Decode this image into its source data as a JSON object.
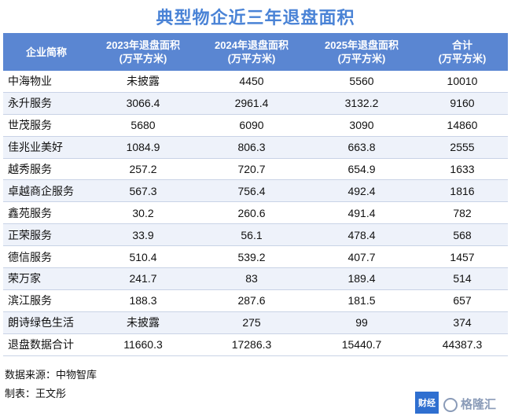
{
  "title": "典型物企近三年退盘面积",
  "headers": [
    {
      "line1": "企业简称",
      "line2": ""
    },
    {
      "line1": "2023年退盘面积",
      "line2": "(万平方米)"
    },
    {
      "line1": "2024年退盘面积",
      "line2": "(万平方米)"
    },
    {
      "line1": "2025年退盘面积",
      "line2": "(万平方米)"
    },
    {
      "line1": "合计",
      "line2": "(万平方米)"
    }
  ],
  "rows": [
    [
      "中海物业",
      "未披露",
      "4450",
      "5560",
      "10010"
    ],
    [
      "永升服务",
      "3066.4",
      "2961.4",
      "3132.2",
      "9160"
    ],
    [
      "世茂服务",
      "5680",
      "6090",
      "3090",
      "14860"
    ],
    [
      "佳兆业美好",
      "1084.9",
      "806.3",
      "663.8",
      "2555"
    ],
    [
      "越秀服务",
      "257.2",
      "720.7",
      "654.9",
      "1633"
    ],
    [
      "卓越商企服务",
      "567.3",
      "756.4",
      "492.4",
      "1816"
    ],
    [
      "鑫苑服务",
      "30.2",
      "260.6",
      "491.4",
      "782"
    ],
    [
      "正荣服务",
      "33.9",
      "56.1",
      "478.4",
      "568"
    ],
    [
      "德信服务",
      "510.4",
      "539.2",
      "407.7",
      "1457"
    ],
    [
      "荣万家",
      "241.7",
      "83",
      "189.4",
      "514"
    ],
    [
      "滨江服务",
      "188.3",
      "287.6",
      "181.5",
      "657"
    ],
    [
      "朗诗绿色生活",
      "未披露",
      "275",
      "99",
      "374"
    ],
    [
      "退盘数据合计",
      "11660.3",
      "17286.3",
      "15440.7",
      "44387.3"
    ]
  ],
  "footer": {
    "source": "数据来源：中物智库",
    "author": "制表：王文彤"
  },
  "logo": {
    "box_text": "财经",
    "text": "格隆汇"
  }
}
